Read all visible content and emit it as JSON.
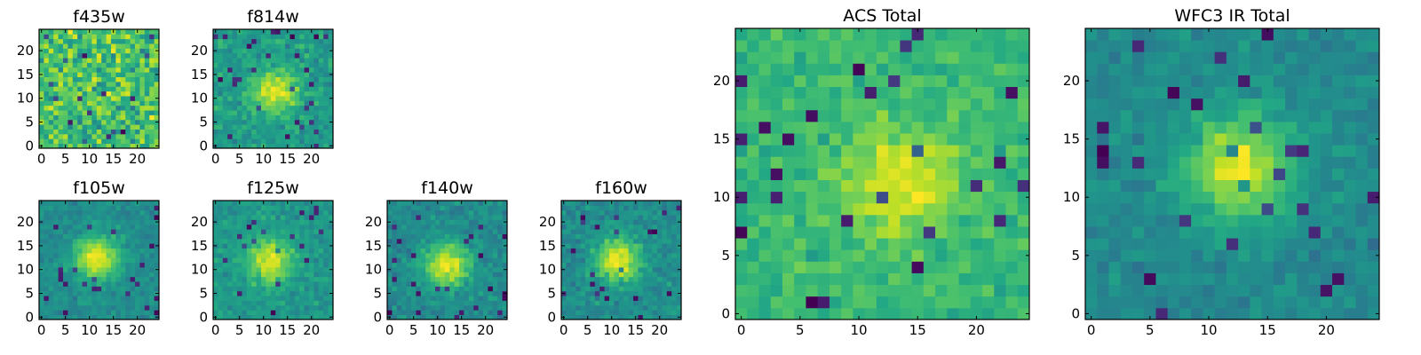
{
  "chart_data": [
    {
      "type": "heatmap",
      "title": "f435w",
      "xticks": [
        "0",
        "5",
        "10",
        "15",
        "20"
      ],
      "yticks": [
        "0",
        "5",
        "10",
        "15",
        "20"
      ],
      "xlim": [
        -0.5,
        24.5
      ],
      "ylim": [
        -0.5,
        24.5
      ],
      "grid": false,
      "colormap": "viridis",
      "source_center": null,
      "source_strength": 0.0,
      "noise_level": 0.85,
      "seed": 11
    },
    {
      "type": "heatmap",
      "title": "f814w",
      "xticks": [
        "0",
        "5",
        "10",
        "15",
        "20"
      ],
      "yticks": [
        "0",
        "5",
        "10",
        "15",
        "20"
      ],
      "xlim": [
        -0.5,
        24.5
      ],
      "ylim": [
        -0.5,
        24.5
      ],
      "grid": false,
      "colormap": "viridis",
      "source_center": [
        12.5,
        11.5
      ],
      "source_strength": 0.55,
      "noise_level": 0.45,
      "seed": 23
    },
    {
      "type": "heatmap",
      "title": "f105w",
      "xticks": [
        "0",
        "5",
        "10",
        "15",
        "20"
      ],
      "yticks": [
        "0",
        "5",
        "10",
        "15",
        "20"
      ],
      "xlim": [
        -0.5,
        24.5
      ],
      "ylim": [
        -0.5,
        24.5
      ],
      "grid": false,
      "colormap": "viridis",
      "source_center": [
        11.5,
        12.5
      ],
      "source_strength": 0.7,
      "noise_level": 0.35,
      "seed": 37
    },
    {
      "type": "heatmap",
      "title": "f125w",
      "xticks": [
        "0",
        "5",
        "10",
        "15",
        "20"
      ],
      "yticks": [
        "0",
        "5",
        "10",
        "15",
        "20"
      ],
      "xlim": [
        -0.5,
        24.5
      ],
      "ylim": [
        -0.5,
        24.5
      ],
      "grid": false,
      "colormap": "viridis",
      "source_center": [
        11.5,
        12.0
      ],
      "source_strength": 0.6,
      "noise_level": 0.4,
      "seed": 41
    },
    {
      "type": "heatmap",
      "title": "f140w",
      "xticks": [
        "0",
        "5",
        "10",
        "15",
        "20"
      ],
      "yticks": [
        "0",
        "5",
        "10",
        "15",
        "20"
      ],
      "xlim": [
        -0.5,
        24.5
      ],
      "ylim": [
        -0.5,
        24.5
      ],
      "grid": false,
      "colormap": "viridis",
      "source_center": [
        12.0,
        11.0
      ],
      "source_strength": 0.7,
      "noise_level": 0.4,
      "seed": 53
    },
    {
      "type": "heatmap",
      "title": "f160w",
      "xticks": [
        "0",
        "5",
        "10",
        "15",
        "20"
      ],
      "yticks": [
        "0",
        "5",
        "10",
        "15",
        "20"
      ],
      "xlim": [
        -0.5,
        24.5
      ],
      "ylim": [
        -0.5,
        24.5
      ],
      "grid": false,
      "colormap": "viridis",
      "source_center": [
        11.5,
        12.0
      ],
      "source_strength": 0.75,
      "noise_level": 0.45,
      "seed": 67
    },
    {
      "type": "heatmap",
      "title": "ACS Total",
      "xticks": [
        "0",
        "5",
        "10",
        "15",
        "20"
      ],
      "yticks": [
        "0",
        "5",
        "10",
        "15",
        "20"
      ],
      "xlim": [
        -0.5,
        24.5
      ],
      "ylim": [
        -0.5,
        24.5
      ],
      "grid": false,
      "colormap": "viridis",
      "source_center": [
        13.5,
        11.5
      ],
      "source_strength": 0.3,
      "noise_level": 0.3,
      "seed": 79
    },
    {
      "type": "heatmap",
      "title": "WFC3 IR Total",
      "xticks": [
        "0",
        "5",
        "10",
        "15",
        "20"
      ],
      "yticks": [
        "0",
        "5",
        "10",
        "15",
        "20"
      ],
      "xlim": [
        -0.5,
        24.5
      ],
      "ylim": [
        -0.5,
        24.5
      ],
      "grid": false,
      "colormap": "viridis",
      "source_center": [
        12.5,
        12.5
      ],
      "source_strength": 0.7,
      "noise_level": 0.35,
      "seed": 97
    }
  ]
}
